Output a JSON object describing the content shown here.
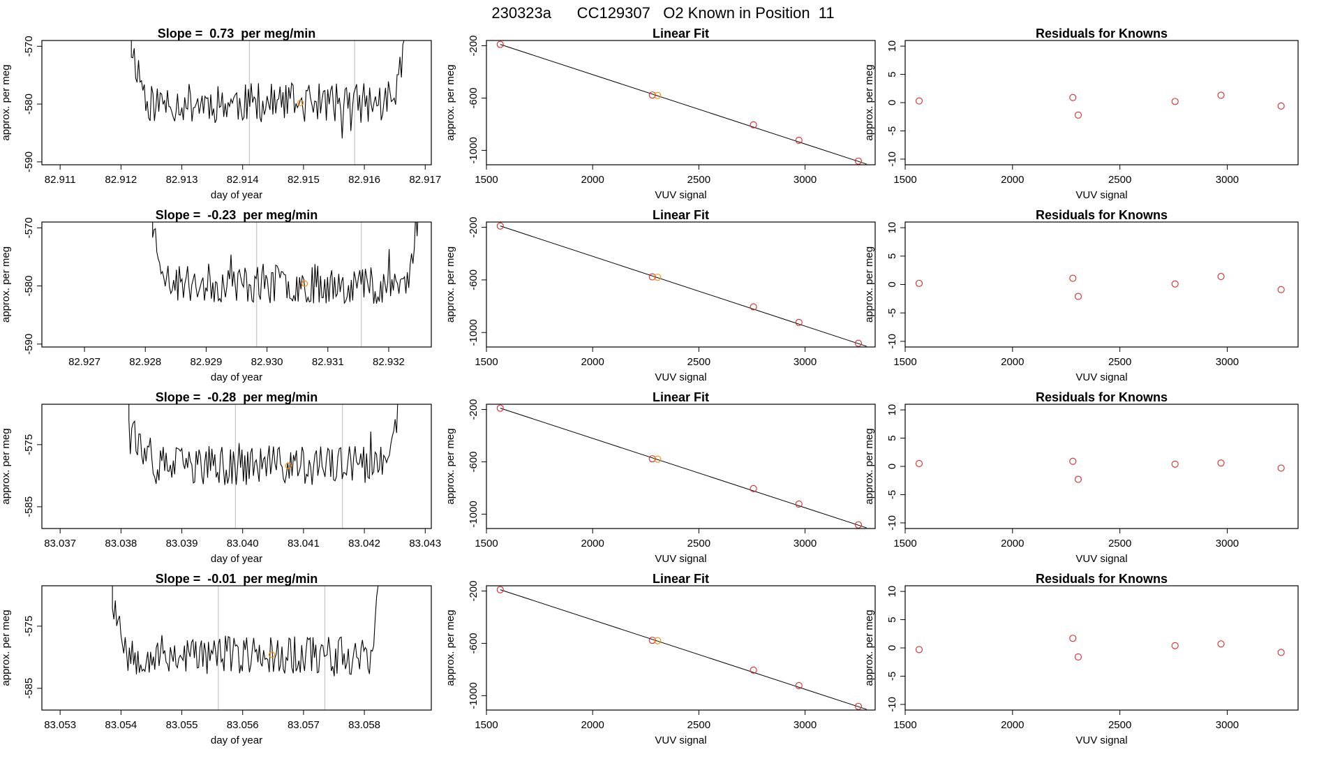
{
  "page_title": "230323a      CC129307   O2 Known in Position  11",
  "colors": {
    "trace": "#000000",
    "marker": "#d62728",
    "highlight": "#ff8c00",
    "vline": "#bbbbbb",
    "frame": "#000000"
  },
  "chart_data": [
    {
      "type": "line",
      "title": "Slope =  0.73  per meg/min",
      "xlabel": "day of year",
      "ylabel": "approx. per meg",
      "xlim": [
        82.9107,
        82.9171
      ],
      "ylim": [
        -590.5,
        -569
      ],
      "xticks": [
        "82.911",
        "82.912",
        "82.913",
        "82.914",
        "82.915",
        "82.916",
        "82.917"
      ],
      "xtick_values": [
        82.911,
        82.912,
        82.913,
        82.914,
        82.915,
        82.916,
        82.917
      ],
      "yticks": [
        "-570",
        "-580",
        "-590"
      ],
      "ytick_values": [
        -570,
        -580,
        -590
      ],
      "trace_start": 82.91217,
      "trace_end": 82.91668,
      "vlines": [
        82.91411,
        82.91584
      ],
      "highlight_point": {
        "x": 82.91495,
        "y": -579.8
      },
      "seed": 11
    },
    {
      "type": "scatter",
      "title": "Linear Fit",
      "xlabel": "VUV signal",
      "ylabel": "approx. per meg",
      "xlim": [
        1500,
        3330
      ],
      "ylim": [
        -1110,
        -160
      ],
      "xticks": [
        "1500",
        "2000",
        "2500",
        "3000"
      ],
      "xtick_values": [
        1500,
        2000,
        2500,
        3000
      ],
      "yticks": [
        "-200",
        "-600",
        "-1000"
      ],
      "ytick_values": [
        -200,
        -600,
        -1000
      ],
      "x": [
        1565,
        2281,
        2306,
        2757,
        2971,
        3251
      ],
      "y": [
        -190,
        -577,
        -580,
        -805,
        -923,
        -1082
      ],
      "highlight_index": 2,
      "fit_line": {
        "x": [
          1565,
          3290
        ],
        "y": [
          -190,
          -1105
        ]
      }
    },
    {
      "type": "scatter",
      "title": "Residuals for Knowns",
      "xlabel": "VUV signal",
      "ylabel": "approx. per meg",
      "xlim": [
        1500,
        3330
      ],
      "ylim": [
        -11,
        11
      ],
      "xticks": [
        "1500",
        "2000",
        "2500",
        "3000"
      ],
      "xtick_values": [
        1500,
        2000,
        2500,
        3000
      ],
      "yticks": [
        "10",
        "5",
        "0",
        "-5",
        "-10"
      ],
      "ytick_values": [
        10,
        5,
        0,
        -5,
        -10
      ],
      "x": [
        1565,
        2281,
        2306,
        2757,
        2971,
        3251
      ],
      "y": [
        0.3,
        0.9,
        -2.2,
        0.2,
        1.3,
        -0.6
      ]
    },
    {
      "type": "line",
      "title": "Slope =  -0.23  per meg/min",
      "xlabel": "day of year",
      "ylabel": "approx. per meg",
      "xlim": [
        82.9263,
        82.9327
      ],
      "ylim": [
        -590.5,
        -569
      ],
      "xticks": [
        "82.927",
        "82.928",
        "82.929",
        "82.930",
        "82.931",
        "82.932"
      ],
      "xtick_values": [
        82.927,
        82.928,
        82.929,
        82.93,
        82.931,
        82.932
      ],
      "yticks": [
        "-570",
        "-580",
        "-590"
      ],
      "ytick_values": [
        -570,
        -580,
        -590
      ],
      "trace_start": 82.92812,
      "trace_end": 82.93249,
      "vlines": [
        82.92983,
        82.93155
      ],
      "highlight_point": {
        "x": 82.93062,
        "y": -579.6
      },
      "seed": 23
    },
    {
      "type": "scatter",
      "title": "Linear Fit",
      "xlabel": "VUV signal",
      "ylabel": "approx. per meg",
      "xlim": [
        1500,
        3330
      ],
      "ylim": [
        -1110,
        -160
      ],
      "xticks": [
        "1500",
        "2000",
        "2500",
        "3000"
      ],
      "xtick_values": [
        1500,
        2000,
        2500,
        3000
      ],
      "yticks": [
        "-200",
        "-600",
        "-1000"
      ],
      "ytick_values": [
        -200,
        -600,
        -1000
      ],
      "x": [
        1565,
        2281,
        2306,
        2757,
        2971,
        3251
      ],
      "y": [
        -190,
        -577,
        -580,
        -805,
        -923,
        -1082
      ],
      "highlight_index": 2,
      "fit_line": {
        "x": [
          1565,
          3290
        ],
        "y": [
          -190,
          -1105
        ]
      }
    },
    {
      "type": "scatter",
      "title": "Residuals for Knowns",
      "xlabel": "VUV signal",
      "ylabel": "approx. per meg",
      "xlim": [
        1500,
        3330
      ],
      "ylim": [
        -11,
        11
      ],
      "xticks": [
        "1500",
        "2000",
        "2500",
        "3000"
      ],
      "xtick_values": [
        1500,
        2000,
        2500,
        3000
      ],
      "yticks": [
        "10",
        "5",
        "0",
        "-5",
        "-10"
      ],
      "ytick_values": [
        10,
        5,
        0,
        -5,
        -10
      ],
      "x": [
        1565,
        2281,
        2306,
        2757,
        2971,
        3251
      ],
      "y": [
        0.2,
        1.1,
        -2.1,
        0.1,
        1.4,
        -0.9
      ]
    },
    {
      "type": "line",
      "title": "Slope =  -0.28  per meg/min",
      "xlabel": "day of year",
      "ylabel": "approx. per meg",
      "xlim": [
        83.0367,
        83.0431
      ],
      "ylim": [
        -588.5,
        -568.5
      ],
      "xticks": [
        "83.037",
        "83.038",
        "83.039",
        "83.040",
        "83.041",
        "83.042",
        "83.043"
      ],
      "xtick_values": [
        83.037,
        83.038,
        83.039,
        83.04,
        83.041,
        83.042,
        83.043
      ],
      "yticks": [
        "-575",
        "-585"
      ],
      "ytick_values": [
        -575,
        -585
      ],
      "trace_start": 83.03813,
      "trace_end": 83.0426,
      "vlines": [
        83.03988,
        83.04164
      ],
      "highlight_point": {
        "x": 83.04075,
        "y": -578.4
      },
      "seed": 37
    },
    {
      "type": "scatter",
      "title": "Linear Fit",
      "xlabel": "VUV signal",
      "ylabel": "approx. per meg",
      "xlim": [
        1500,
        3330
      ],
      "ylim": [
        -1110,
        -160
      ],
      "xticks": [
        "1500",
        "2000",
        "2500",
        "3000"
      ],
      "xtick_values": [
        1500,
        2000,
        2500,
        3000
      ],
      "yticks": [
        "-200",
        "-600",
        "-1000"
      ],
      "ytick_values": [
        -200,
        -600,
        -1000
      ],
      "x": [
        1565,
        2281,
        2306,
        2757,
        2971,
        3251
      ],
      "y": [
        -190,
        -577,
        -580,
        -805,
        -923,
        -1082
      ],
      "highlight_index": 2,
      "fit_line": {
        "x": [
          1565,
          3290
        ],
        "y": [
          -190,
          -1105
        ]
      }
    },
    {
      "type": "scatter",
      "title": "Residuals for Knowns",
      "xlabel": "VUV signal",
      "ylabel": "approx. per meg",
      "xlim": [
        1500,
        3330
      ],
      "ylim": [
        -11,
        11
      ],
      "xticks": [
        "1500",
        "2000",
        "2500",
        "3000"
      ],
      "xtick_values": [
        1500,
        2000,
        2500,
        3000
      ],
      "yticks": [
        "10",
        "5",
        "0",
        "-5",
        "-10"
      ],
      "ytick_values": [
        10,
        5,
        0,
        -5,
        -10
      ],
      "x": [
        1565,
        2281,
        2306,
        2757,
        2971,
        3251
      ],
      "y": [
        0.5,
        0.9,
        -2.3,
        0.4,
        0.6,
        -0.3
      ]
    },
    {
      "type": "line",
      "title": "Slope =  -0.01  per meg/min",
      "xlabel": "day of year",
      "ylabel": "approx. per meg",
      "xlim": [
        83.0527,
        83.0591
      ],
      "ylim": [
        -588.5,
        -568.5
      ],
      "xticks": [
        "83.053",
        "83.054",
        "83.055",
        "83.056",
        "83.057",
        "83.058"
      ],
      "xtick_values": [
        83.053,
        83.054,
        83.055,
        83.056,
        83.057,
        83.058
      ],
      "yticks": [
        "-575",
        "-585"
      ],
      "ytick_values": [
        -575,
        -585
      ],
      "trace_start": 83.05386,
      "trace_end": 83.05827,
      "vlines": [
        83.0556,
        83.05735
      ],
      "highlight_point": {
        "x": 83.05648,
        "y": -579.6
      },
      "seed": 53
    },
    {
      "type": "scatter",
      "title": "Linear Fit",
      "xlabel": "VUV signal",
      "ylabel": "approx. per meg",
      "xlim": [
        1500,
        3330
      ],
      "ylim": [
        -1110,
        -160
      ],
      "xticks": [
        "1500",
        "2000",
        "2500",
        "3000"
      ],
      "xtick_values": [
        1500,
        2000,
        2500,
        3000
      ],
      "yticks": [
        "-200",
        "-600",
        "-1000"
      ],
      "ytick_values": [
        -200,
        -600,
        -1000
      ],
      "x": [
        1565,
        2281,
        2306,
        2757,
        2971,
        3251
      ],
      "y": [
        -190,
        -577,
        -580,
        -805,
        -923,
        -1082
      ],
      "highlight_index": 2,
      "fit_line": {
        "x": [
          1565,
          3290
        ],
        "y": [
          -190,
          -1105
        ]
      }
    },
    {
      "type": "scatter",
      "title": "Residuals for Knowns",
      "xlabel": "VUV signal",
      "ylabel": "approx. per meg",
      "xlim": [
        1500,
        3330
      ],
      "ylim": [
        -11,
        11
      ],
      "xticks": [
        "1500",
        "2000",
        "2500",
        "3000"
      ],
      "xtick_values": [
        1500,
        2000,
        2500,
        3000
      ],
      "yticks": [
        "10",
        "5",
        "0",
        "-5",
        "-10"
      ],
      "ytick_values": [
        10,
        5,
        0,
        -5,
        -10
      ],
      "x": [
        1565,
        2281,
        2306,
        2757,
        2971,
        3251
      ],
      "y": [
        -0.3,
        1.7,
        -1.6,
        0.4,
        0.7,
        -0.8
      ]
    }
  ]
}
